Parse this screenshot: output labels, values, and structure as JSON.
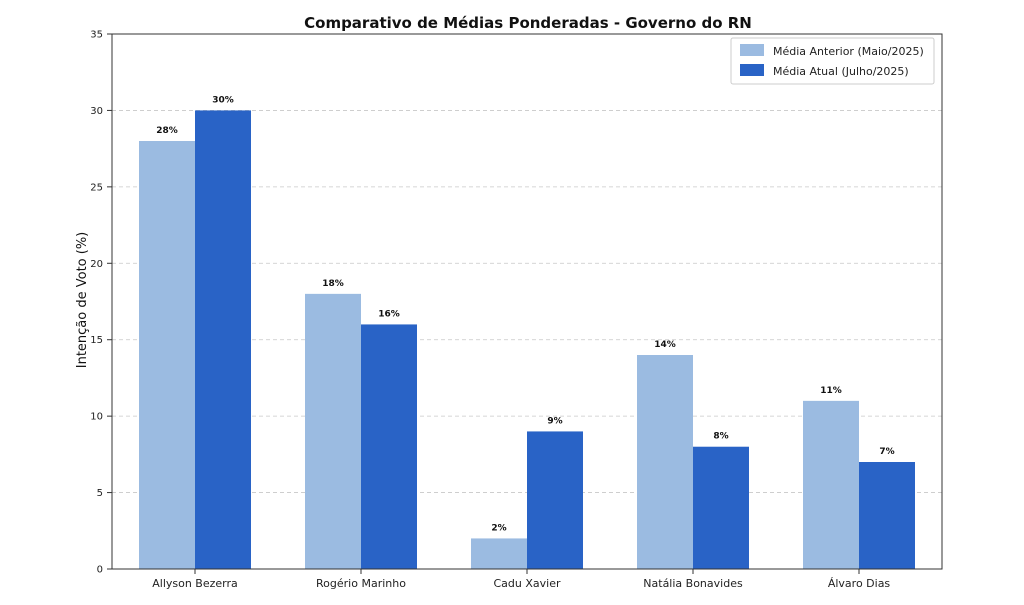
{
  "chart_data": {
    "type": "bar",
    "title": "Comparativo de Médias Ponderadas - Governo do RN",
    "xlabel": "",
    "ylabel": "Intenção de Voto (%)",
    "ylim": [
      0,
      35
    ],
    "yticks": [
      "0",
      "5",
      "10",
      "15",
      "20",
      "25",
      "30",
      "35"
    ],
    "ytick_values": [
      0,
      5,
      10,
      15,
      20,
      25,
      30,
      35
    ],
    "grid": true,
    "legend_position": "top-right",
    "categories": [
      "Allyson Bezerra",
      "Rogério Marinho",
      "Cadu Xavier",
      "Natália Bonavides",
      "Álvaro Dias"
    ],
    "series": [
      {
        "name": "Média Anterior (Maio/2025)",
        "color": "#9bbbe1",
        "values": [
          28,
          18,
          2,
          14,
          11
        ],
        "labels": [
          "28%",
          "18%",
          "2%",
          "14%",
          "11%"
        ]
      },
      {
        "name": "Média Atual (Julho/2025)",
        "color": "#2963c6",
        "values": [
          30,
          16,
          9,
          8,
          7
        ],
        "labels": [
          "30%",
          "16%",
          "9%",
          "8%",
          "7%"
        ]
      }
    ]
  }
}
